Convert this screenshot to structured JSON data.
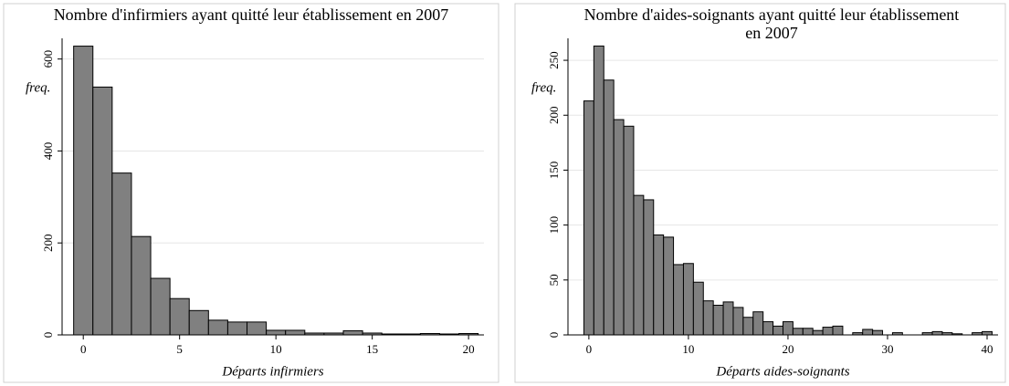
{
  "chart_data": [
    {
      "type": "histogram",
      "title": [
        "Nombre d'infirmiers ayant quitté leur établissement en 2007"
      ],
      "x_label": "Départs infirmiers",
      "y_label": "freq.",
      "bins": [
        -0.5,
        0.5,
        1.5,
        2.5,
        3.5,
        4.5,
        5.5,
        6.5,
        7.5,
        8.5,
        9.5,
        10.5,
        11.5,
        12.5,
        13.5,
        14.5,
        15.5,
        16.5,
        17.5,
        18.5,
        19.5,
        20.5
      ],
      "values": [
        628,
        539,
        352,
        214,
        123,
        79,
        53,
        32,
        28,
        28,
        10,
        10,
        4,
        4,
        9,
        4,
        2,
        2,
        3,
        2,
        3
      ],
      "color": "#808080",
      "xlim": [
        -1.1,
        20.8
      ],
      "xticks": [
        0,
        5,
        10,
        15,
        20
      ],
      "ylim": [
        0,
        645
      ],
      "yticks": [
        0,
        200,
        400,
        600
      ],
      "grid": true
    },
    {
      "type": "histogram",
      "title": [
        "Nombre d'aides-soignants ayant quitté leur établissement",
        "en 2007"
      ],
      "x_label": "Départs aides-soignants",
      "y_label": "freq.",
      "bins": [
        -0.5,
        0.5,
        1.5,
        2.5,
        3.5,
        4.5,
        5.5,
        6.5,
        7.5,
        8.5,
        9.5,
        10.5,
        11.5,
        12.5,
        13.5,
        14.5,
        15.5,
        16.5,
        17.5,
        18.5,
        19.5,
        20.5,
        21.5,
        22.5,
        23.5,
        24.5,
        25.5,
        26.5,
        27.5,
        28.5,
        29.5,
        30.5,
        31.5,
        32.5,
        33.5,
        34.5,
        35.5,
        36.5,
        37.5,
        38.5,
        39.5,
        40.5
      ],
      "values": [
        213,
        263,
        232,
        196,
        190,
        127,
        123,
        91,
        89,
        64,
        65,
        48,
        31,
        27,
        30,
        25,
        16,
        21,
        12,
        8,
        12,
        6,
        6,
        4,
        7,
        8,
        0,
        2,
        5,
        4,
        0,
        2,
        0,
        0,
        2,
        3,
        2,
        1,
        0,
        2,
        3
      ],
      "color": "#808080",
      "xlim": [
        -2.1,
        41.1
      ],
      "xticks": [
        0,
        10,
        20,
        30,
        40
      ],
      "ylim": [
        0,
        270
      ],
      "yticks": [
        0,
        50,
        100,
        150,
        200,
        250
      ],
      "grid": true
    }
  ]
}
